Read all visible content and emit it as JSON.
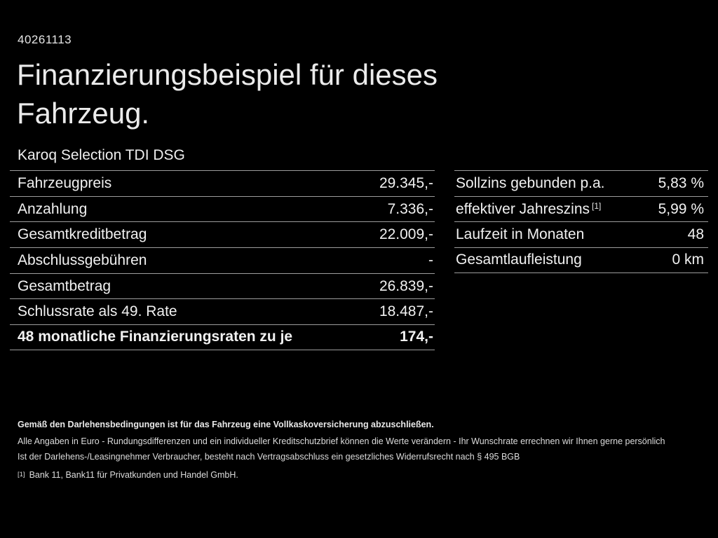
{
  "page": {
    "doc_number": "40261113",
    "title_line1": "Finanzierungsbeispiel für dieses",
    "title_line2": "Fahrzeug.",
    "subtitle": "Karoq Selection TDI DSG"
  },
  "colors": {
    "background": "#000000",
    "text": "#f1f1f1",
    "divider": "#9d9d9d"
  },
  "left_table": {
    "rows": [
      {
        "label": "Fahrzeugpreis",
        "value": "29.345,-"
      },
      {
        "label": "Anzahlung",
        "value": "7.336,-"
      },
      {
        "label": "Gesamtkreditbetrag",
        "value": "22.009,-"
      },
      {
        "label": "Abschlussgebühren",
        "value": "-"
      },
      {
        "label": "Gesamtbetrag",
        "value": "26.839,-"
      },
      {
        "label": "Schlussrate als 49. Rate",
        "value": "18.487,-"
      },
      {
        "label": "48 monatliche Finanzierungsraten zu je",
        "value": "174,-"
      }
    ]
  },
  "right_table": {
    "rows": [
      {
        "label": "Sollzins gebunden p.a.",
        "sup": "",
        "value": "5,83 %"
      },
      {
        "label": "effektiver Jahreszins",
        "sup": "[1]",
        "value": "5,99 %"
      },
      {
        "label": "Laufzeit in Monaten",
        "sup": "",
        "value": "48"
      },
      {
        "label": "Gesamtlaufleistung",
        "sup": "",
        "value": "0 km"
      }
    ]
  },
  "footer": {
    "line1": "Gemäß den Darlehensbedingungen ist für das Fahrzeug eine Vollkaskoversicherung abzuschließen.",
    "line2": "Alle Angaben in Euro - Rundungsdifferenzen und ein individueller Kreditschutzbrief können die Werte verändern - Ihr Wunschrate errechnen wir Ihnen gerne persönlich",
    "line3": "Ist der Darlehens-/Leasingnehmer Verbraucher, besteht nach Vertragsabschluss ein gesetzliches Widerrufsrecht nach § 495 BGB",
    "footnote_marker": "[1]",
    "footnote_text": "Bank 11, Bank11 für Privatkunden und Handel GmbH."
  }
}
